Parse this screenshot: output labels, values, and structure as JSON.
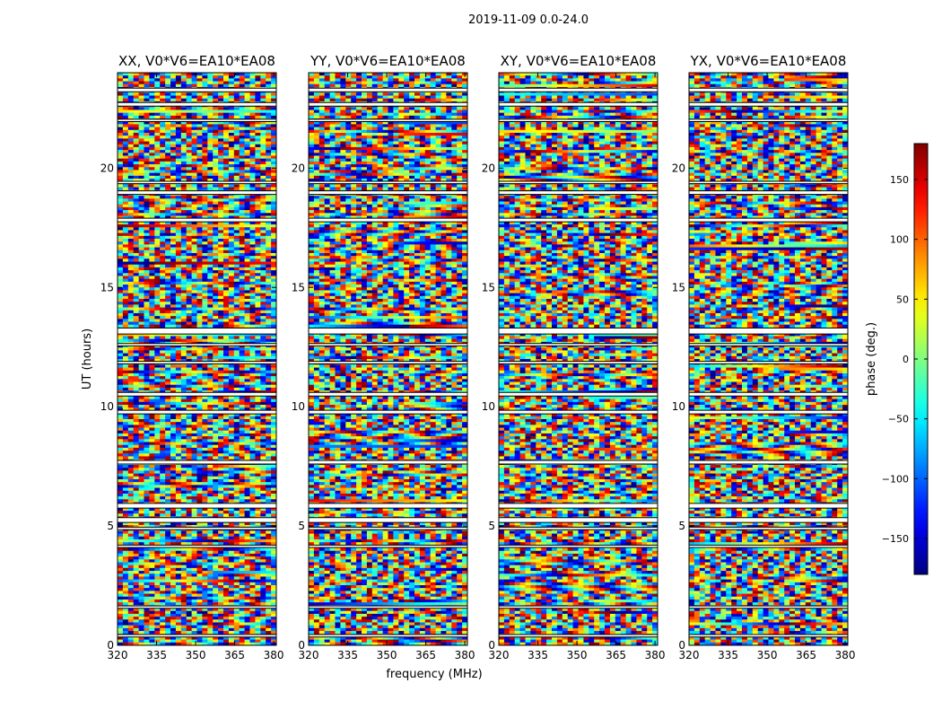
{
  "suptitle": "2019-11-09 0.0-24.0",
  "chart_data": {
    "type": "heatmap",
    "panels": [
      {
        "title": "XX, V0*V6=EA10*EA08"
      },
      {
        "title": "YY, V0*V6=EA10*EA08"
      },
      {
        "title": "XY, V0*V6=EA10*EA08"
      },
      {
        "title": "YX, V0*V6=EA10*EA08"
      }
    ],
    "xlabel": "frequency (MHz)",
    "ylabel": "UT (hours)",
    "xlim": [
      320,
      381
    ],
    "ylim": [
      0,
      24
    ],
    "xticks": [
      "320",
      "335",
      "350",
      "365",
      "380"
    ],
    "xtick_values": [
      320,
      335,
      350,
      365,
      380
    ],
    "yticks": [
      "0",
      "5",
      "10",
      "15",
      "20"
    ],
    "ytick_values": [
      0,
      5,
      10,
      15,
      20
    ],
    "colorbar": {
      "label": "phase (deg.)",
      "range": [
        -180,
        180
      ],
      "colormap": "jet",
      "ticks": [
        "−150",
        "−100",
        "−50",
        "0",
        "50",
        "100",
        "150"
      ],
      "tick_values": [
        -150,
        -100,
        -50,
        0,
        50,
        100,
        150
      ]
    },
    "data_gaps_ut": [
      [
        23.2,
        23.35
      ],
      [
        22.6,
        22.75
      ],
      [
        21.95,
        22.05
      ],
      [
        19.35,
        19.45
      ],
      [
        18.9,
        19.05
      ],
      [
        17.75,
        17.9
      ],
      [
        13.05,
        13.3
      ],
      [
        12.55,
        12.65
      ],
      [
        11.8,
        11.9
      ],
      [
        10.45,
        10.6
      ],
      [
        9.7,
        9.85
      ],
      [
        7.6,
        7.75
      ],
      [
        5.75,
        5.95
      ],
      [
        5.15,
        5.35
      ],
      [
        4.85,
        4.95
      ],
      [
        4.1,
        4.2
      ],
      [
        1.55,
        1.65
      ],
      [
        0.35,
        0.45
      ]
    ]
  }
}
